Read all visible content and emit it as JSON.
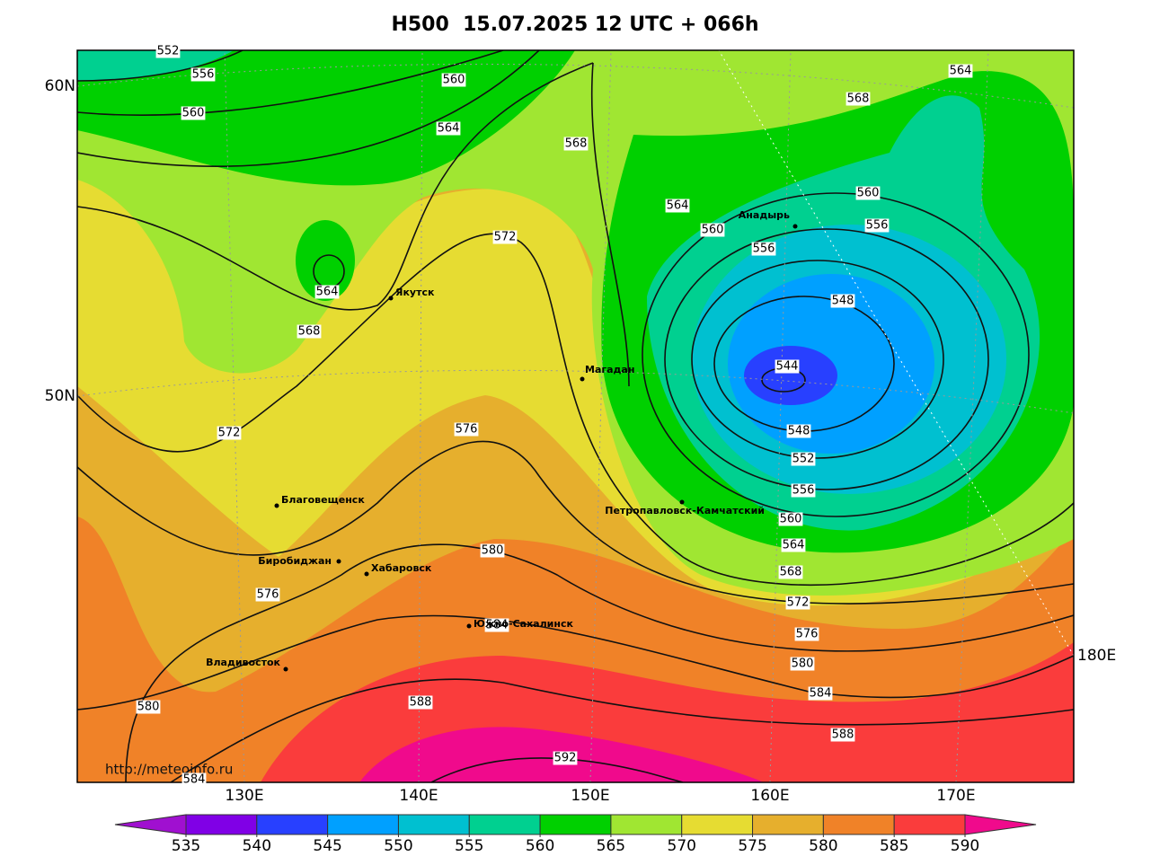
{
  "title": "H500  15.07.2025 12 UTC + 066h",
  "source": "http://meteoinfo.ru",
  "lat_labels": [
    "60N",
    "50N"
  ],
  "lon_labels": [
    "130E",
    "140E",
    "150E",
    "160E",
    "170E",
    "180E"
  ],
  "cities": [
    "Якутск",
    "Магадан",
    "Анадырь",
    "Петропавловск-Камчатский",
    "Благовещенск",
    "Биробиджан",
    "Хабаровск",
    "Южно-Сахалинск",
    "Владивосток"
  ],
  "contour_labels": [
    552,
    556,
    560,
    560,
    564,
    568,
    564,
    560,
    556,
    548,
    544,
    548,
    552,
    556,
    560,
    564,
    568,
    572,
    576,
    580,
    584,
    588,
    592,
    588,
    584,
    580,
    576,
    572,
    572,
    568,
    564,
    576,
    580,
    584,
    564,
    568,
    560,
    556
  ],
  "colorbar": {
    "ticks": [
      535,
      540,
      545,
      550,
      555,
      560,
      565,
      570,
      575,
      580,
      585,
      590
    ],
    "colors": [
      "#a010d0",
      "#8000e6",
      "#2840ff",
      "#00a0ff",
      "#00c0d0",
      "#00d090",
      "#00d000",
      "#a0e632",
      "#e6dc32",
      "#e6af2d",
      "#f08228",
      "#fa3c3c",
      "#f00a8c"
    ]
  }
}
